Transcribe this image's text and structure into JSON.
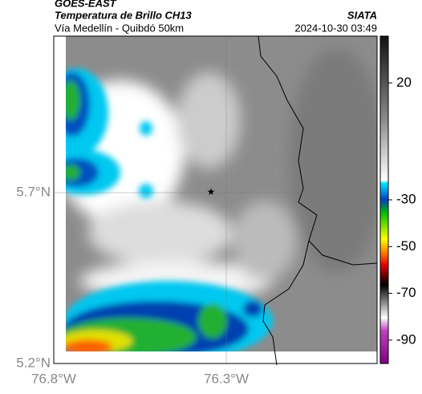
{
  "header": {
    "source": "GOES-EAST",
    "title": "Temperatura de Brillo CH13",
    "subtitle": "Vía Medellín - Quibdó 50km",
    "agency": "SIATA",
    "datetime": "2024-10-30 03:49"
  },
  "map": {
    "lat_lim": [
      5.2,
      6.158
    ],
    "lon_lim": [
      -76.8,
      -75.863
    ],
    "lat_ticks": [
      {
        "value": 5.7,
        "label": "5.7°N"
      },
      {
        "value": 5.2,
        "label": "5.2°N"
      }
    ],
    "lon_ticks": [
      {
        "value": -76.8,
        "label": "76.8°W"
      },
      {
        "value": -76.3,
        "label": "76.3°W"
      }
    ],
    "colorbar": {
      "lim": [
        -100,
        40
      ],
      "ticks": [
        20,
        -30,
        -50,
        -70,
        -90
      ]
    }
  }
}
